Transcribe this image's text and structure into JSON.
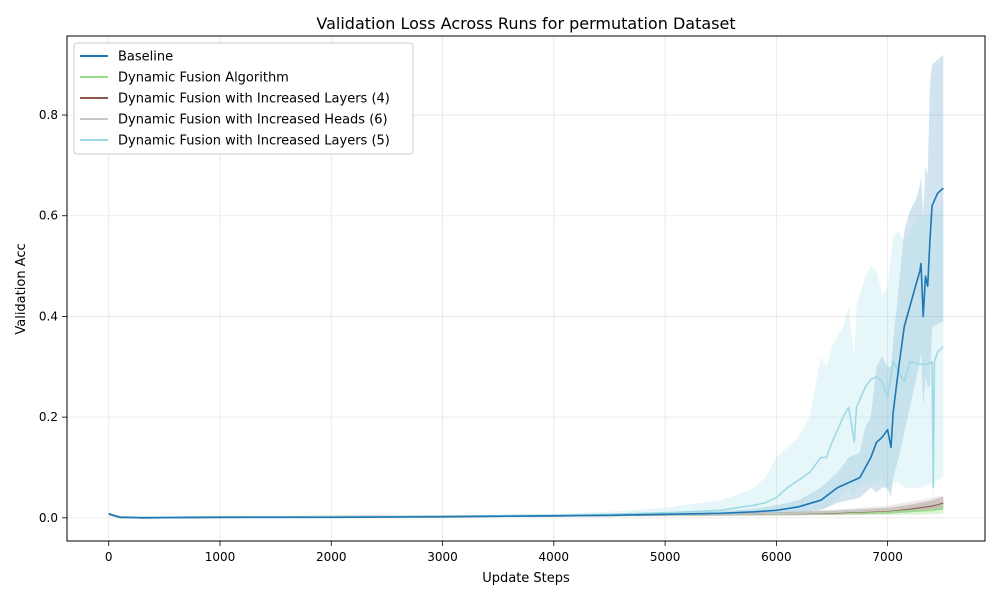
{
  "chart_data": {
    "type": "line",
    "title": "Validation Loss Across Runs for permutation Dataset",
    "xlabel": "Update Steps",
    "ylabel": "Validation Acc",
    "xlim": [
      -375,
      7875
    ],
    "ylim": [
      -0.046,
      0.957
    ],
    "xticks": [
      0,
      1000,
      2000,
      3000,
      4000,
      5000,
      6000,
      7000
    ],
    "yticks": [
      0.0,
      0.2,
      0.4,
      0.6,
      0.8
    ],
    "ytick_labels": [
      "0.0",
      "0.2",
      "0.4",
      "0.6",
      "0.8"
    ],
    "grid": true,
    "legend_position": "top-left",
    "series": [
      {
        "name": "Baseline",
        "color": "#1f77b4",
        "x": [
          0,
          100,
          300,
          1000,
          2000,
          3000,
          4000,
          4500,
          5000,
          5500,
          5800,
          6000,
          6200,
          6400,
          6550,
          6650,
          6750,
          6800,
          6850,
          6900,
          6950,
          7000,
          7030,
          7050,
          7100,
          7150,
          7200,
          7250,
          7290,
          7300,
          7320,
          7340,
          7360,
          7380,
          7400,
          7450,
          7500
        ],
        "values": [
          0.008,
          0.001,
          0.0,
          0.001,
          0.001,
          0.002,
          0.004,
          0.005,
          0.007,
          0.009,
          0.012,
          0.015,
          0.022,
          0.035,
          0.06,
          0.07,
          0.08,
          0.1,
          0.12,
          0.15,
          0.16,
          0.175,
          0.14,
          0.21,
          0.3,
          0.38,
          0.42,
          0.46,
          0.49,
          0.505,
          0.4,
          0.48,
          0.46,
          0.55,
          0.62,
          0.645,
          0.655
        ],
        "band_upper": [
          0.01,
          0.003,
          0.002,
          0.003,
          0.003,
          0.004,
          0.006,
          0.008,
          0.01,
          0.013,
          0.018,
          0.025,
          0.035,
          0.06,
          0.09,
          0.12,
          0.13,
          0.18,
          0.2,
          0.3,
          0.32,
          0.3,
          0.3,
          0.35,
          0.46,
          0.57,
          0.61,
          0.63,
          0.66,
          0.68,
          0.6,
          0.7,
          0.68,
          0.86,
          0.9,
          0.91,
          0.92
        ],
        "band_lower": [
          0.006,
          0.0,
          0.0,
          0.0,
          0.0,
          0.001,
          0.002,
          0.003,
          0.005,
          0.006,
          0.007,
          0.008,
          0.01,
          0.015,
          0.03,
          0.035,
          0.04,
          0.05,
          0.06,
          0.05,
          0.06,
          0.06,
          0.04,
          0.08,
          0.12,
          0.17,
          0.22,
          0.27,
          0.31,
          0.33,
          0.22,
          0.28,
          0.26,
          0.26,
          0.38,
          0.385,
          0.39
        ]
      },
      {
        "name": "Dynamic Fusion Algorithm",
        "color": "#98df8a",
        "x": [
          0,
          100,
          300,
          1000,
          2000,
          3000,
          4000,
          5000,
          6000,
          6500,
          7000,
          7200,
          7400,
          7500
        ],
        "values": [
          0.007,
          0.001,
          0.0,
          0.001,
          0.002,
          0.003,
          0.004,
          0.006,
          0.008,
          0.009,
          0.011,
          0.013,
          0.015,
          0.018
        ],
        "band_upper": [
          0.009,
          0.003,
          0.002,
          0.003,
          0.004,
          0.005,
          0.006,
          0.008,
          0.011,
          0.013,
          0.017,
          0.022,
          0.028,
          0.033
        ],
        "band_lower": [
          0.005,
          0.0,
          0.0,
          0.0,
          0.0,
          0.001,
          0.002,
          0.003,
          0.004,
          0.005,
          0.006,
          0.006,
          0.007,
          0.008
        ]
      },
      {
        "name": "Dynamic Fusion with Increased Layers (4)",
        "color": "#8c564b",
        "x": [
          0,
          100,
          300,
          1000,
          2000,
          3000,
          4000,
          5000,
          6000,
          6500,
          7000,
          7200,
          7400,
          7500
        ],
        "values": [
          0.007,
          0.001,
          0.0,
          0.001,
          0.002,
          0.003,
          0.004,
          0.006,
          0.008,
          0.01,
          0.014,
          0.018,
          0.024,
          0.03
        ],
        "band_upper": [
          0.009,
          0.003,
          0.002,
          0.003,
          0.004,
          0.005,
          0.006,
          0.008,
          0.011,
          0.014,
          0.02,
          0.026,
          0.035,
          0.042
        ],
        "band_lower": [
          0.005,
          0.0,
          0.0,
          0.0,
          0.0,
          0.001,
          0.002,
          0.004,
          0.005,
          0.006,
          0.008,
          0.011,
          0.015,
          0.02
        ]
      },
      {
        "name": "Dynamic Fusion with Increased Heads (6)",
        "color": "#c7c7c7",
        "x": [
          0,
          100,
          300,
          1000,
          2000,
          3000,
          4000,
          5000,
          6000,
          6500,
          7000,
          7200,
          7400,
          7500
        ],
        "values": [
          0.007,
          0.001,
          0.0,
          0.001,
          0.002,
          0.003,
          0.004,
          0.006,
          0.008,
          0.011,
          0.015,
          0.02,
          0.026,
          0.032
        ],
        "band_upper": [
          0.009,
          0.003,
          0.002,
          0.003,
          0.004,
          0.005,
          0.006,
          0.009,
          0.012,
          0.016,
          0.024,
          0.032,
          0.04,
          0.045
        ],
        "band_lower": [
          0.005,
          0.0,
          0.0,
          0.0,
          0.0,
          0.001,
          0.002,
          0.004,
          0.005,
          0.006,
          0.008,
          0.011,
          0.015,
          0.019
        ]
      },
      {
        "name": "Dynamic Fusion with Increased Layers (5)",
        "color": "#9edae5",
        "x": [
          0,
          100,
          300,
          1000,
          2000,
          3000,
          4000,
          4500,
          5000,
          5500,
          5700,
          5800,
          5900,
          6000,
          6100,
          6200,
          6300,
          6400,
          6450,
          6500,
          6550,
          6600,
          6650,
          6700,
          6720,
          6800,
          6850,
          6900,
          6950,
          7000,
          7050,
          7100,
          7150,
          7200,
          7300,
          7350,
          7400,
          7410,
          7420,
          7450,
          7500
        ],
        "values": [
          0.007,
          0.002,
          0.001,
          0.002,
          0.002,
          0.003,
          0.005,
          0.007,
          0.01,
          0.015,
          0.022,
          0.025,
          0.03,
          0.04,
          0.06,
          0.075,
          0.09,
          0.12,
          0.12,
          0.15,
          0.175,
          0.2,
          0.22,
          0.15,
          0.22,
          0.26,
          0.275,
          0.28,
          0.27,
          0.24,
          0.31,
          0.29,
          0.27,
          0.31,
          0.305,
          0.305,
          0.31,
          0.06,
          0.31,
          0.33,
          0.34
        ],
        "band_upper": [
          0.009,
          0.004,
          0.003,
          0.004,
          0.004,
          0.005,
          0.008,
          0.012,
          0.02,
          0.035,
          0.05,
          0.06,
          0.08,
          0.12,
          0.14,
          0.16,
          0.2,
          0.32,
          0.3,
          0.34,
          0.36,
          0.38,
          0.42,
          0.32,
          0.42,
          0.48,
          0.5,
          0.49,
          0.44,
          0.46,
          0.56,
          0.57,
          0.55,
          0.57,
          0.6,
          0.6,
          0.61,
          0.6,
          0.6,
          0.61,
          0.62
        ],
        "band_lower": [
          0.005,
          0.0,
          0.0,
          0.0,
          0.0,
          0.001,
          0.002,
          0.003,
          0.004,
          0.005,
          0.006,
          0.006,
          0.007,
          0.008,
          0.01,
          0.012,
          0.015,
          0.02,
          0.02,
          0.03,
          0.04,
          0.05,
          0.06,
          0.04,
          0.06,
          0.07,
          0.07,
          0.07,
          0.08,
          0.05,
          0.07,
          0.07,
          0.06,
          0.06,
          0.06,
          0.065,
          0.07,
          0.02,
          0.07,
          0.075,
          0.08
        ]
      }
    ]
  }
}
